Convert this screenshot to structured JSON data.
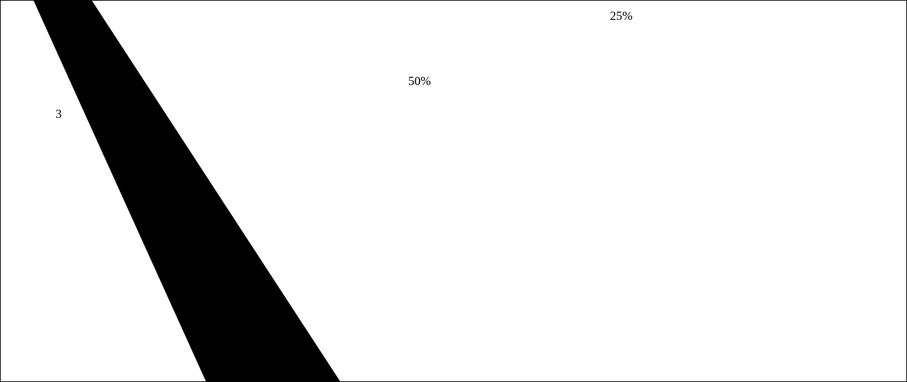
{
  "labels": {
    "pct_25": "25%",
    "pct_50": "50%",
    "digit": "3"
  },
  "colors": {
    "background": "#ffffff",
    "wedge": "#000000",
    "text": "#000000",
    "border": "#000000"
  }
}
